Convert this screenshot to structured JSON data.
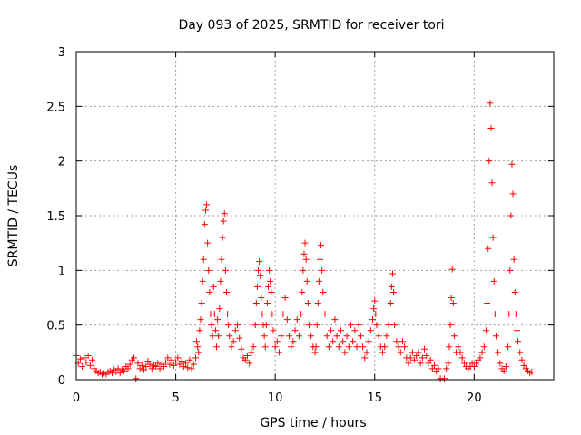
{
  "chart_data": {
    "type": "scatter",
    "title": "Day 093 of 2025, SRMTID for receiver tori",
    "xlabel": "GPS time / hours",
    "ylabel": "SRMTID / TECUs",
    "xlim": [
      0,
      24
    ],
    "ylim": [
      0,
      3
    ],
    "xticks": [
      0,
      5,
      10,
      15,
      20
    ],
    "xtick_labels": [
      "0",
      "5",
      "10",
      "15",
      "20"
    ],
    "yticks": [
      0,
      0.5,
      1,
      1.5,
      2,
      2.5,
      3
    ],
    "ytick_labels": [
      "0",
      "0.5",
      "1",
      "1.5",
      "2",
      "2.5",
      "3"
    ],
    "grid": true,
    "marker": "plus",
    "color": "#ff0000",
    "series": [
      {
        "name": "SRMTID",
        "points": [
          [
            0.0,
            0.22
          ],
          [
            0.1,
            0.15
          ],
          [
            0.2,
            0.19
          ],
          [
            0.3,
            0.12
          ],
          [
            0.4,
            0.2
          ],
          [
            0.5,
            0.16
          ],
          [
            0.6,
            0.22
          ],
          [
            0.7,
            0.13
          ],
          [
            0.8,
            0.18
          ],
          [
            0.9,
            0.1
          ],
          [
            1.0,
            0.08
          ],
          [
            1.1,
            0.06
          ],
          [
            1.2,
            0.07
          ],
          [
            1.3,
            0.05
          ],
          [
            1.4,
            0.06
          ],
          [
            1.5,
            0.05
          ],
          [
            1.6,
            0.07
          ],
          [
            1.7,
            0.08
          ],
          [
            1.8,
            0.06
          ],
          [
            1.9,
            0.09
          ],
          [
            2.0,
            0.07
          ],
          [
            2.1,
            0.1
          ],
          [
            2.2,
            0.06
          ],
          [
            2.3,
            0.09
          ],
          [
            2.4,
            0.08
          ],
          [
            2.5,
            0.12
          ],
          [
            2.6,
            0.1
          ],
          [
            2.7,
            0.14
          ],
          [
            2.8,
            0.18
          ],
          [
            2.9,
            0.2
          ],
          [
            3.0,
            0.01
          ],
          [
            3.1,
            0.15
          ],
          [
            3.2,
            0.1
          ],
          [
            3.3,
            0.13
          ],
          [
            3.4,
            0.09
          ],
          [
            3.5,
            0.12
          ],
          [
            3.6,
            0.17
          ],
          [
            3.7,
            0.14
          ],
          [
            3.8,
            0.1
          ],
          [
            3.9,
            0.13
          ],
          [
            4.0,
            0.12
          ],
          [
            4.1,
            0.15
          ],
          [
            4.2,
            0.1
          ],
          [
            4.3,
            0.14
          ],
          [
            4.4,
            0.12
          ],
          [
            4.5,
            0.16
          ],
          [
            4.6,
            0.2
          ],
          [
            4.7,
            0.14
          ],
          [
            4.8,
            0.18
          ],
          [
            4.9,
            0.13
          ],
          [
            5.0,
            0.16
          ],
          [
            5.1,
            0.2
          ],
          [
            5.2,
            0.14
          ],
          [
            5.3,
            0.17
          ],
          [
            5.4,
            0.12
          ],
          [
            5.5,
            0.15
          ],
          [
            5.6,
            0.11
          ],
          [
            5.7,
            0.18
          ],
          [
            5.8,
            0.1
          ],
          [
            5.9,
            0.14
          ],
          [
            6.0,
            0.2
          ],
          [
            6.05,
            0.35
          ],
          [
            6.1,
            0.3
          ],
          [
            6.15,
            0.25
          ],
          [
            6.2,
            0.45
          ],
          [
            6.25,
            0.55
          ],
          [
            6.3,
            0.7
          ],
          [
            6.35,
            0.9
          ],
          [
            6.4,
            1.1
          ],
          [
            6.45,
            1.42
          ],
          [
            6.5,
            1.55
          ],
          [
            6.55,
            1.6
          ],
          [
            6.6,
            1.25
          ],
          [
            6.65,
            1.0
          ],
          [
            6.7,
            0.8
          ],
          [
            6.75,
            0.6
          ],
          [
            6.8,
            0.5
          ],
          [
            6.85,
            0.4
          ],
          [
            6.9,
            0.85
          ],
          [
            6.95,
            0.6
          ],
          [
            7.0,
            0.45
          ],
          [
            7.05,
            0.3
          ],
          [
            7.1,
            0.55
          ],
          [
            7.15,
            0.4
          ],
          [
            7.2,
            0.65
          ],
          [
            7.25,
            0.9
          ],
          [
            7.3,
            1.1
          ],
          [
            7.35,
            1.3
          ],
          [
            7.4,
            1.45
          ],
          [
            7.45,
            1.52
          ],
          [
            7.5,
            1.0
          ],
          [
            7.55,
            0.8
          ],
          [
            7.6,
            0.6
          ],
          [
            7.65,
            0.5
          ],
          [
            7.7,
            0.4
          ],
          [
            7.8,
            0.3
          ],
          [
            7.9,
            0.35
          ],
          [
            8.0,
            0.45
          ],
          [
            8.1,
            0.5
          ],
          [
            8.2,
            0.38
          ],
          [
            8.3,
            0.28
          ],
          [
            8.4,
            0.2
          ],
          [
            8.5,
            0.18
          ],
          [
            8.6,
            0.22
          ],
          [
            8.7,
            0.15
          ],
          [
            8.8,
            0.25
          ],
          [
            8.9,
            0.3
          ],
          [
            9.0,
            0.5
          ],
          [
            9.05,
            0.7
          ],
          [
            9.1,
            0.85
          ],
          [
            9.15,
            1.0
          ],
          [
            9.2,
            1.08
          ],
          [
            9.25,
            0.95
          ],
          [
            9.3,
            0.75
          ],
          [
            9.35,
            0.6
          ],
          [
            9.4,
            0.5
          ],
          [
            9.45,
            0.4
          ],
          [
            9.5,
            0.3
          ],
          [
            9.55,
            0.5
          ],
          [
            9.6,
            0.7
          ],
          [
            9.65,
            0.85
          ],
          [
            9.7,
            1.0
          ],
          [
            9.75,
            0.9
          ],
          [
            9.8,
            0.8
          ],
          [
            9.85,
            0.6
          ],
          [
            9.9,
            0.45
          ],
          [
            10.0,
            0.3
          ],
          [
            10.1,
            0.35
          ],
          [
            10.2,
            0.25
          ],
          [
            10.3,
            0.4
          ],
          [
            10.4,
            0.6
          ],
          [
            10.5,
            0.75
          ],
          [
            10.6,
            0.55
          ],
          [
            10.7,
            0.4
          ],
          [
            10.8,
            0.3
          ],
          [
            10.9,
            0.35
          ],
          [
            11.0,
            0.45
          ],
          [
            11.1,
            0.55
          ],
          [
            11.2,
            0.4
          ],
          [
            11.3,
            0.6
          ],
          [
            11.35,
            0.8
          ],
          [
            11.4,
            1.0
          ],
          [
            11.45,
            1.15
          ],
          [
            11.5,
            1.25
          ],
          [
            11.55,
            1.1
          ],
          [
            11.6,
            0.9
          ],
          [
            11.65,
            0.7
          ],
          [
            11.7,
            0.5
          ],
          [
            11.8,
            0.4
          ],
          [
            11.9,
            0.3
          ],
          [
            12.0,
            0.25
          ],
          [
            12.05,
            0.3
          ],
          [
            12.1,
            0.5
          ],
          [
            12.15,
            0.7
          ],
          [
            12.2,
            0.9
          ],
          [
            12.25,
            1.1
          ],
          [
            12.3,
            1.23
          ],
          [
            12.35,
            1.0
          ],
          [
            12.4,
            0.8
          ],
          [
            12.5,
            0.6
          ],
          [
            12.6,
            0.4
          ],
          [
            12.7,
            0.3
          ],
          [
            12.8,
            0.45
          ],
          [
            12.9,
            0.35
          ],
          [
            13.0,
            0.55
          ],
          [
            13.1,
            0.4
          ],
          [
            13.2,
            0.3
          ],
          [
            13.3,
            0.45
          ],
          [
            13.4,
            0.35
          ],
          [
            13.5,
            0.25
          ],
          [
            13.6,
            0.4
          ],
          [
            13.7,
            0.3
          ],
          [
            13.8,
            0.5
          ],
          [
            13.9,
            0.35
          ],
          [
            14.0,
            0.45
          ],
          [
            14.1,
            0.3
          ],
          [
            14.2,
            0.5
          ],
          [
            14.3,
            0.4
          ],
          [
            14.4,
            0.3
          ],
          [
            14.5,
            0.2
          ],
          [
            14.6,
            0.25
          ],
          [
            14.7,
            0.35
          ],
          [
            14.8,
            0.45
          ],
          [
            14.9,
            0.55
          ],
          [
            14.95,
            0.65
          ],
          [
            15.0,
            0.72
          ],
          [
            15.05,
            0.6
          ],
          [
            15.1,
            0.5
          ],
          [
            15.2,
            0.4
          ],
          [
            15.3,
            0.3
          ],
          [
            15.4,
            0.25
          ],
          [
            15.5,
            0.3
          ],
          [
            15.6,
            0.4
          ],
          [
            15.7,
            0.5
          ],
          [
            15.8,
            0.7
          ],
          [
            15.85,
            0.85
          ],
          [
            15.9,
            0.97
          ],
          [
            15.95,
            0.8
          ],
          [
            16.0,
            0.5
          ],
          [
            16.1,
            0.35
          ],
          [
            16.2,
            0.3
          ],
          [
            16.3,
            0.25
          ],
          [
            16.4,
            0.35
          ],
          [
            16.5,
            0.3
          ],
          [
            16.6,
            0.2
          ],
          [
            16.7,
            0.15
          ],
          [
            16.8,
            0.2
          ],
          [
            16.9,
            0.25
          ],
          [
            17.0,
            0.18
          ],
          [
            17.1,
            0.22
          ],
          [
            17.2,
            0.25
          ],
          [
            17.3,
            0.15
          ],
          [
            17.4,
            0.2
          ],
          [
            17.5,
            0.28
          ],
          [
            17.6,
            0.22
          ],
          [
            17.7,
            0.15
          ],
          [
            17.8,
            0.18
          ],
          [
            17.9,
            0.1
          ],
          [
            18.0,
            0.13
          ],
          [
            18.1,
            0.08
          ],
          [
            18.2,
            0.1
          ],
          [
            18.3,
            0.01
          ],
          [
            18.5,
            0.01
          ],
          [
            18.6,
            0.1
          ],
          [
            18.7,
            0.15
          ],
          [
            18.75,
            0.3
          ],
          [
            18.8,
            0.5
          ],
          [
            18.85,
            0.75
          ],
          [
            18.9,
            1.01
          ],
          [
            18.95,
            0.7
          ],
          [
            19.0,
            0.4
          ],
          [
            19.1,
            0.25
          ],
          [
            19.2,
            0.3
          ],
          [
            19.3,
            0.25
          ],
          [
            19.4,
            0.2
          ],
          [
            19.5,
            0.15
          ],
          [
            19.6,
            0.12
          ],
          [
            19.7,
            0.1
          ],
          [
            19.8,
            0.12
          ],
          [
            19.9,
            0.15
          ],
          [
            20.0,
            0.12
          ],
          [
            20.1,
            0.15
          ],
          [
            20.2,
            0.18
          ],
          [
            20.3,
            0.2
          ],
          [
            20.4,
            0.25
          ],
          [
            20.5,
            0.3
          ],
          [
            20.6,
            0.45
          ],
          [
            20.65,
            0.7
          ],
          [
            20.7,
            1.2
          ],
          [
            20.75,
            2.0
          ],
          [
            20.8,
            2.53
          ],
          [
            20.85,
            2.3
          ],
          [
            20.9,
            1.8
          ],
          [
            20.95,
            1.3
          ],
          [
            21.0,
            0.9
          ],
          [
            21.05,
            0.6
          ],
          [
            21.1,
            0.4
          ],
          [
            21.2,
            0.25
          ],
          [
            21.3,
            0.15
          ],
          [
            21.4,
            0.1
          ],
          [
            21.5,
            0.08
          ],
          [
            21.6,
            0.12
          ],
          [
            21.7,
            0.3
          ],
          [
            21.75,
            0.6
          ],
          [
            21.8,
            1.0
          ],
          [
            21.85,
            1.5
          ],
          [
            21.9,
            1.97
          ],
          [
            21.95,
            1.7
          ],
          [
            22.0,
            1.1
          ],
          [
            22.05,
            0.8
          ],
          [
            22.1,
            0.6
          ],
          [
            22.15,
            0.45
          ],
          [
            22.2,
            0.35
          ],
          [
            22.3,
            0.25
          ],
          [
            22.4,
            0.18
          ],
          [
            22.5,
            0.13
          ],
          [
            22.6,
            0.1
          ],
          [
            22.7,
            0.08
          ],
          [
            22.8,
            0.06
          ],
          [
            22.9,
            0.07
          ]
        ]
      }
    ]
  }
}
